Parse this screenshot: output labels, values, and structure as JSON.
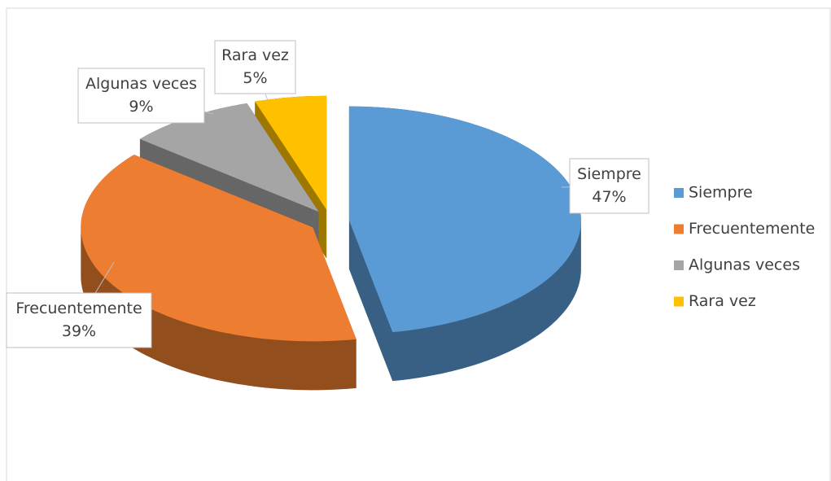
{
  "chart_data": {
    "type": "pie",
    "categories": [
      "Siempre",
      "Frecuentemente",
      "Algunas veces",
      "Rara vez"
    ],
    "values": [
      47,
      39,
      9,
      5
    ],
    "value_labels": [
      "47%",
      "39%",
      "9%",
      "5%"
    ],
    "colors": [
      "#5b9bd5",
      "#ed7d31",
      "#a5a5a5",
      "#ffc000"
    ],
    "legend": "right"
  }
}
